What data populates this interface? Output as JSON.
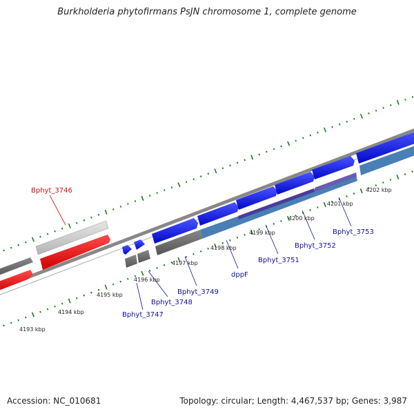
{
  "title": "Burkholderia phytofirmans PsJN chromosome 1, complete genome",
  "footer": {
    "accession": "Accession: NC_010681",
    "summary": "Topology: circular; Length: 4,467,537 bp; Genes: 3,987"
  },
  "colors": {
    "forward_gene": "#0a14e6",
    "reverse_gene": "#ff1010",
    "highlight_gene": "#c8c8c8",
    "other_feature": "#666666",
    "cds_feature": "#4a7fb5",
    "purple_feature": "#4a3b9c",
    "tick": "#1a7a1a",
    "label_forward": "#1010a0",
    "label_highlight": "#cc1010"
  },
  "scale_labels": [
    "4193 kbp",
    "4194 kbp",
    "4195 kbp",
    "4196 kbp",
    "4197 kbp",
    "4198 kbp",
    "4199 kbp",
    "4200 kbp",
    "4201 kbp",
    "4202 kbp"
  ],
  "gene_labels": [
    {
      "name": "Bphyt_3746",
      "kind": "highlight"
    },
    {
      "name": "Bphyt_3747",
      "kind": "forward"
    },
    {
      "name": "Bphyt_3748",
      "kind": "forward"
    },
    {
      "name": "Bphyt_3749",
      "kind": "forward"
    },
    {
      "name": "dppF",
      "kind": "forward"
    },
    {
      "name": "Bphyt_3751",
      "kind": "forward"
    },
    {
      "name": "Bphyt_3752",
      "kind": "forward"
    },
    {
      "name": "Bphyt_3753",
      "kind": "forward"
    }
  ]
}
